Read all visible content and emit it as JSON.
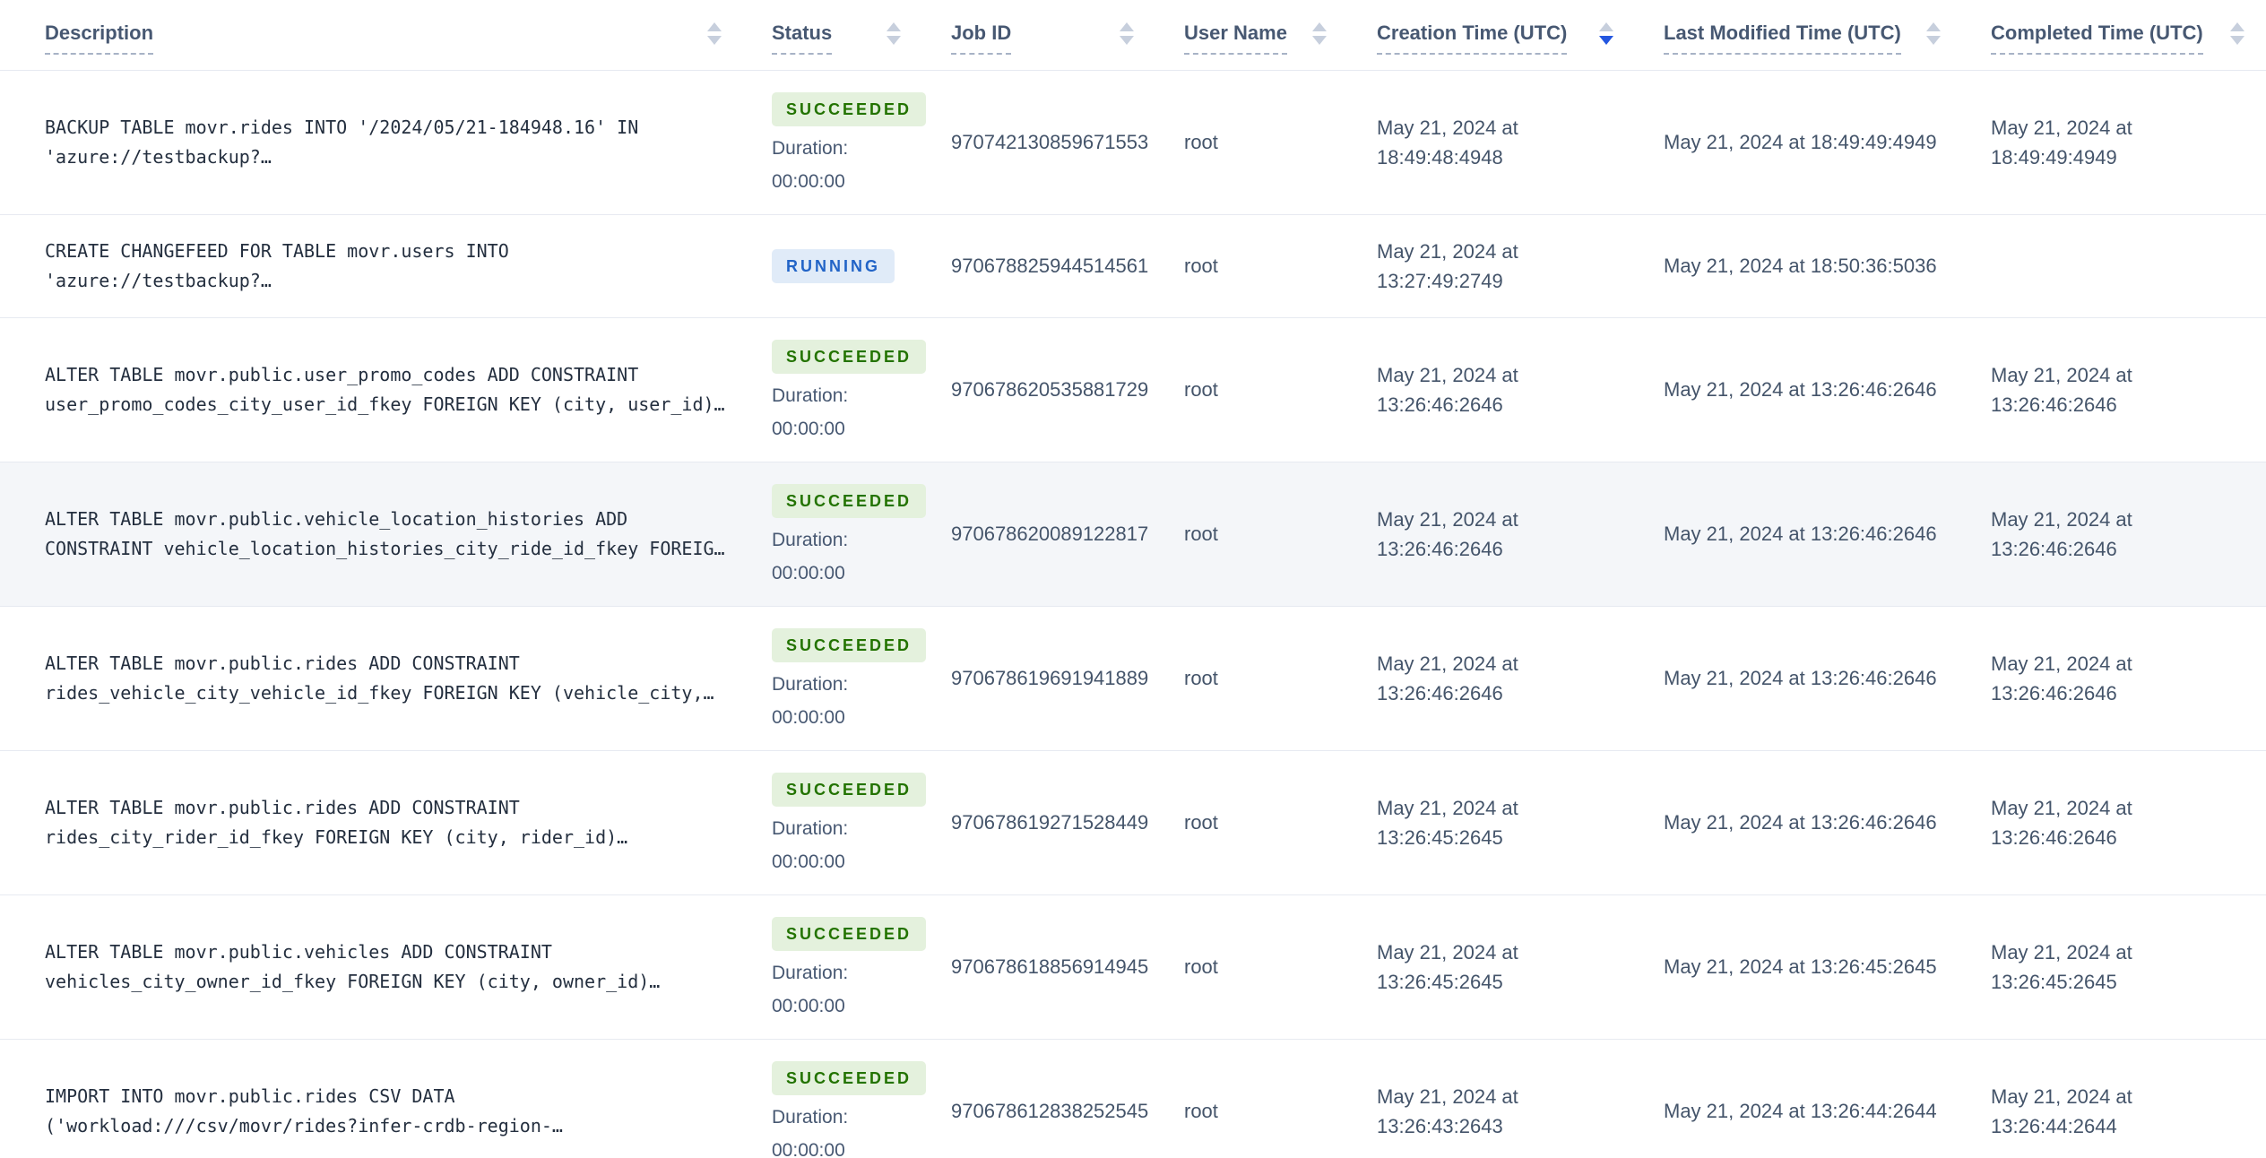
{
  "colors": {
    "header-text": "#475872",
    "body-text": "#44546a",
    "mono-text": "#242f3f",
    "border": "#e7eaf1",
    "row-highlight": "#f4f6f9",
    "succeeded-bg": "#e4f1dd",
    "succeeded-text": "#237300",
    "running-bg": "#e0ebf8",
    "running-text": "#2264c7",
    "sort-idle": "#c7cfdd",
    "sort-active": "#2356e0"
  },
  "table": {
    "duration_label": "Duration:",
    "columns": [
      {
        "label": "Description",
        "sort": "none"
      },
      {
        "label": "Status",
        "sort": "none"
      },
      {
        "label": "Job ID",
        "sort": "none"
      },
      {
        "label": "User Name",
        "sort": "none"
      },
      {
        "label": "Creation Time (UTC)",
        "sort": "desc"
      },
      {
        "label": "Last Modified Time (UTC)",
        "sort": "none"
      },
      {
        "label": "Completed Time (UTC)",
        "sort": "none"
      }
    ],
    "rows": [
      {
        "description": "BACKUP TABLE movr.rides INTO '/2024/05/21-184948.16' IN 'azure://testbackup?…",
        "status": "SUCCEEDED",
        "duration": "00:00:00",
        "job_id": "970742130859671553",
        "user": "root",
        "created": "May 21, 2024 at 18:49:48:4948",
        "modified": "May 21, 2024 at 18:49:49:4949",
        "completed": "May 21, 2024 at 18:49:49:4949",
        "highlighted": false
      },
      {
        "description": "CREATE CHANGEFEED FOR TABLE movr.users INTO 'azure://testbackup?…",
        "status": "RUNNING",
        "duration": null,
        "job_id": "970678825944514561",
        "user": "root",
        "created": "May 21, 2024 at 13:27:49:2749",
        "modified": "May 21, 2024 at 18:50:36:5036",
        "completed": null,
        "highlighted": false
      },
      {
        "description": "ALTER TABLE movr.public.user_promo_codes ADD CONSTRAINT user_promo_codes_city_user_id_fkey FOREIGN KEY (city, user_id)…",
        "status": "SUCCEEDED",
        "duration": "00:00:00",
        "job_id": "970678620535881729",
        "user": "root",
        "created": "May 21, 2024 at 13:26:46:2646",
        "modified": "May 21, 2024 at 13:26:46:2646",
        "completed": "May 21, 2024 at 13:26:46:2646",
        "highlighted": false
      },
      {
        "description": "ALTER TABLE movr.public.vehicle_location_histories ADD CONSTRAINT vehicle_location_histories_city_ride_id_fkey FOREIG…",
        "status": "SUCCEEDED",
        "duration": "00:00:00",
        "job_id": "970678620089122817",
        "user": "root",
        "created": "May 21, 2024 at 13:26:46:2646",
        "modified": "May 21, 2024 at 13:26:46:2646",
        "completed": "May 21, 2024 at 13:26:46:2646",
        "highlighted": true
      },
      {
        "description": "ALTER TABLE movr.public.rides ADD CONSTRAINT rides_vehicle_city_vehicle_id_fkey FOREIGN KEY (vehicle_city,…",
        "status": "SUCCEEDED",
        "duration": "00:00:00",
        "job_id": "970678619691941889",
        "user": "root",
        "created": "May 21, 2024 at 13:26:46:2646",
        "modified": "May 21, 2024 at 13:26:46:2646",
        "completed": "May 21, 2024 at 13:26:46:2646",
        "highlighted": false
      },
      {
        "description": "ALTER TABLE movr.public.rides ADD CONSTRAINT rides_city_rider_id_fkey FOREIGN KEY (city, rider_id)…",
        "status": "SUCCEEDED",
        "duration": "00:00:00",
        "job_id": "970678619271528449",
        "user": "root",
        "created": "May 21, 2024 at 13:26:45:2645",
        "modified": "May 21, 2024 at 13:26:46:2646",
        "completed": "May 21, 2024 at 13:26:46:2646",
        "highlighted": false
      },
      {
        "description": "ALTER TABLE movr.public.vehicles ADD CONSTRAINT vehicles_city_owner_id_fkey FOREIGN KEY (city, owner_id)…",
        "status": "SUCCEEDED",
        "duration": "00:00:00",
        "job_id": "970678618856914945",
        "user": "root",
        "created": "May 21, 2024 at 13:26:45:2645",
        "modified": "May 21, 2024 at 13:26:45:2645",
        "completed": "May 21, 2024 at 13:26:45:2645",
        "highlighted": false
      },
      {
        "description": "IMPORT INTO movr.public.rides CSV DATA ('workload:///csv/movr/rides?infer-crdb-region-…",
        "status": "SUCCEEDED",
        "duration": "00:00:00",
        "job_id": "970678612838252545",
        "user": "root",
        "created": "May 21, 2024 at 13:26:43:2643",
        "modified": "May 21, 2024 at 13:26:44:2644",
        "completed": "May 21, 2024 at 13:26:44:2644",
        "highlighted": false
      }
    ]
  }
}
